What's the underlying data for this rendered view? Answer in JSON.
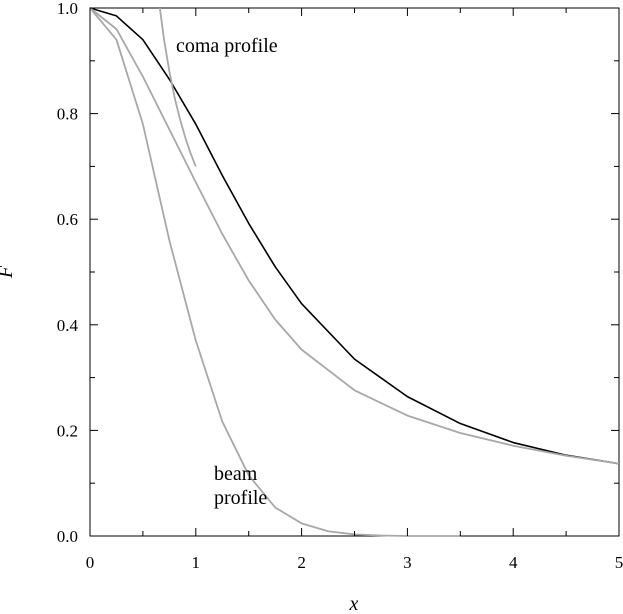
{
  "chart_data": {
    "type": "line",
    "title": "",
    "xlabel": "x",
    "ylabel": "F",
    "xlim": [
      0,
      5
    ],
    "ylim": [
      0,
      1
    ],
    "grid": false,
    "x_ticks": [
      "0",
      "1",
      "2",
      "3",
      "4",
      "5"
    ],
    "y_ticks": [
      "0.0",
      "0.2",
      "0.4",
      "0.6",
      "0.8",
      "1.0"
    ],
    "annotations": [
      {
        "text": "coma profile"
      },
      {
        "text": "beam"
      },
      {
        "text": "profile"
      }
    ],
    "series": [
      {
        "color": "#000000",
        "x": [
          0,
          0.25,
          0.5,
          0.75,
          1.0,
          1.25,
          1.5,
          1.75,
          2.0,
          2.5,
          3.0,
          3.5,
          4.0,
          4.5,
          5.0
        ],
        "values": [
          1.0,
          0.985,
          0.94,
          0.865,
          0.78,
          0.683,
          0.592,
          0.51,
          0.44,
          0.335,
          0.264,
          0.213,
          0.177,
          0.153,
          0.137
        ]
      },
      {
        "color": "#a8a8a8",
        "x": [
          0,
          0.25,
          0.5,
          0.75,
          1.0,
          1.25,
          1.5,
          1.75,
          2.0,
          2.5,
          3.0,
          3.5,
          4.0,
          4.5,
          5.0
        ],
        "values": [
          1.0,
          0.96,
          0.87,
          0.77,
          0.67,
          0.572,
          0.484,
          0.41,
          0.353,
          0.276,
          0.228,
          0.195,
          0.171,
          0.152,
          0.137
        ]
      },
      {
        "color": "#a8a8a8",
        "x": [
          0,
          0.25,
          0.5,
          0.75,
          1.0,
          1.25,
          1.5,
          1.75,
          2.0,
          2.25,
          2.5,
          2.75,
          3.0,
          3.5
        ],
        "values": [
          1.0,
          0.94,
          0.78,
          0.56,
          0.37,
          0.217,
          0.115,
          0.054,
          0.024,
          0.009,
          0.003,
          0.001,
          0.0,
          0.0
        ]
      },
      {
        "color": "#a8a8a8",
        "x": [
          0.66,
          0.7,
          0.75,
          0.8,
          0.85,
          0.9,
          0.95,
          1.0
        ],
        "values": [
          1.0,
          0.94,
          0.88,
          0.83,
          0.79,
          0.755,
          0.725,
          0.7
        ]
      }
    ]
  }
}
